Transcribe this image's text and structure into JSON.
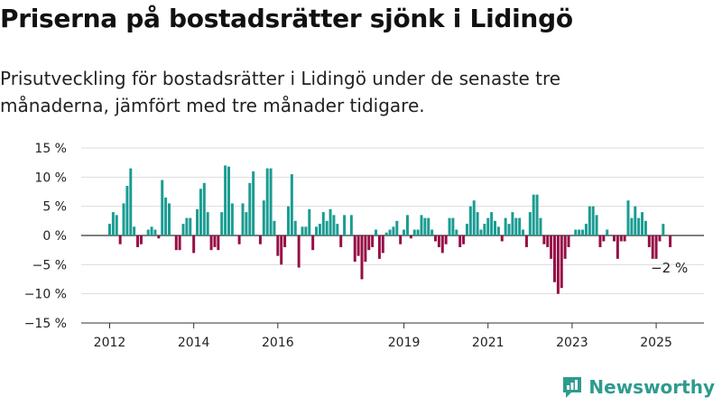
{
  "title": "Priserna på bostadsrätter sjönk i Lidingö",
  "subtitle": "Prisutveckling för bostadsrätter i Lidingö under de senaste tre månaderna, jämfört med tre månader tidigare.",
  "brand": "Newsworthy",
  "colors": {
    "positive": "#1a9c92",
    "negative": "#960e47",
    "grid": "#dddddd",
    "axis": "#333333"
  },
  "chart_data": {
    "type": "bar",
    "title": "Priserna på bostadsrätter sjönk i Lidingö",
    "subtitle": "Prisutveckling för bostadsrätter i Lidingö under de senaste tre månaderna, jämfört med tre månader tidigare.",
    "xlabel": "",
    "ylabel": "",
    "unit": "%",
    "ylim": [
      -15,
      15
    ],
    "y_ticks": [
      15,
      10,
      5,
      0,
      -5,
      -10,
      -15
    ],
    "y_tick_labels": [
      "15 %",
      "10 %",
      "5 %",
      "0 %",
      "−5 %",
      "−10 %",
      "−15 %"
    ],
    "x_ticks": [
      "2012",
      "2014",
      "2016",
      "2019",
      "2021",
      "2023",
      "2025"
    ],
    "x_start": "2012-01",
    "grid": true,
    "legend": "none",
    "annotation": {
      "text": "−2 %",
      "target": "last"
    },
    "values": [
      2,
      4,
      3.5,
      -1.5,
      5.5,
      8.5,
      11.5,
      1.5,
      -2,
      -1.5,
      0,
      1,
      1.5,
      1,
      -0.5,
      9.5,
      6.5,
      5.5,
      0,
      -2.5,
      -2.5,
      2,
      3,
      3,
      -3,
      4.5,
      8,
      9,
      4,
      -2.5,
      -2,
      -2.5,
      4,
      12,
      11.8,
      5.5,
      0,
      -1.5,
      5.5,
      4,
      9,
      11,
      0,
      -1.5,
      6,
      11.5,
      11.5,
      2.5,
      -3.5,
      -5,
      -2,
      5,
      10.5,
      2.5,
      -5.5,
      1.5,
      1.5,
      4.5,
      -2.5,
      1.5,
      2,
      4,
      2.5,
      4.5,
      3.5,
      2,
      -2,
      3.5,
      0,
      3.5,
      -4.5,
      -3.5,
      -7.5,
      -4.5,
      -2.5,
      -2,
      1,
      -4,
      -3,
      0.5,
      1,
      1.5,
      2.5,
      -1.5,
      1,
      3.5,
      -0.5,
      1,
      1,
      3.5,
      3,
      3,
      1,
      -1,
      -2,
      -3,
      -1.5,
      3,
      3,
      1,
      -2,
      -1.5,
      2,
      5,
      6,
      4,
      1,
      2,
      3,
      4,
      2.5,
      1.5,
      -1,
      3,
      2,
      4,
      3,
      3,
      1,
      -2,
      4,
      7,
      7,
      3,
      -1.5,
      -2,
      -4,
      -8,
      -10,
      -9,
      -4,
      -2,
      0,
      1,
      1,
      1,
      2,
      5,
      5,
      3.5,
      -2,
      -1,
      1,
      0,
      -1,
      -4,
      -1,
      -1,
      6,
      3,
      5,
      3,
      4,
      2.5,
      -2,
      -4,
      -4,
      -1,
      2,
      0,
      -2
    ]
  }
}
